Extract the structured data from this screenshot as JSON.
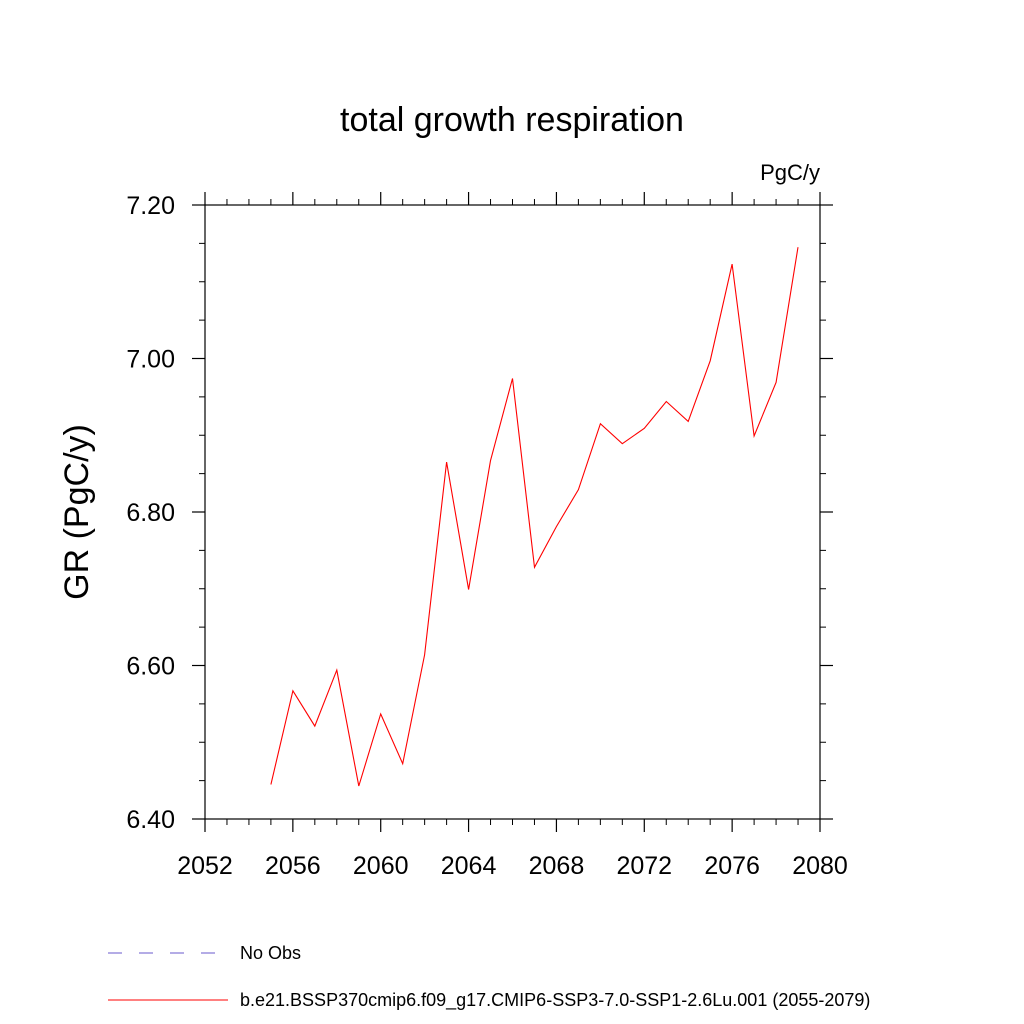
{
  "chart_data": {
    "type": "line",
    "title": "total growth respiration",
    "units": "PgC/y",
    "xlabel": "",
    "ylabel": "GR  (PgC/y)",
    "xlim": [
      2052,
      2080
    ],
    "ylim": [
      6.4,
      7.2
    ],
    "x_ticks": [
      "2052",
      "2056",
      "2060",
      "2064",
      "2068",
      "2072",
      "2076",
      "2080"
    ],
    "y_ticks": [
      "6.40",
      "6.60",
      "6.80",
      "7.00",
      "7.20"
    ],
    "grid": false,
    "legend_position": "bottom-left",
    "series": [
      {
        "name": "b.e21.BSSP370cmip6.f09_g17.CMIP6-SSP3-7.0-SSP1-2.6Lu.001 (2055-2079)",
        "color": "#ff0000",
        "style": "solid",
        "x": [
          2055,
          2056,
          2057,
          2058,
          2059,
          2060,
          2061,
          2062,
          2063,
          2064,
          2065,
          2066,
          2067,
          2068,
          2069,
          2070,
          2071,
          2072,
          2073,
          2074,
          2075,
          2076,
          2077,
          2078,
          2079
        ],
        "y": [
          6.445,
          6.567,
          6.521,
          6.594,
          6.443,
          6.537,
          6.472,
          6.614,
          6.865,
          6.699,
          6.867,
          6.974,
          6.728,
          6.781,
          6.829,
          6.915,
          6.889,
          6.909,
          6.944,
          6.918,
          6.997,
          7.123,
          6.899,
          6.969,
          7.145
        ]
      }
    ],
    "legend": [
      {
        "label": "No Obs",
        "color": "#6a5acd",
        "style": "dashed"
      },
      {
        "label": "b.e21.BSSP370cmip6.f09_g17.CMIP6-SSP3-7.0-SSP1-2.6Lu.001 (2055-2079)",
        "color": "#ff0000",
        "style": "solid"
      }
    ]
  }
}
